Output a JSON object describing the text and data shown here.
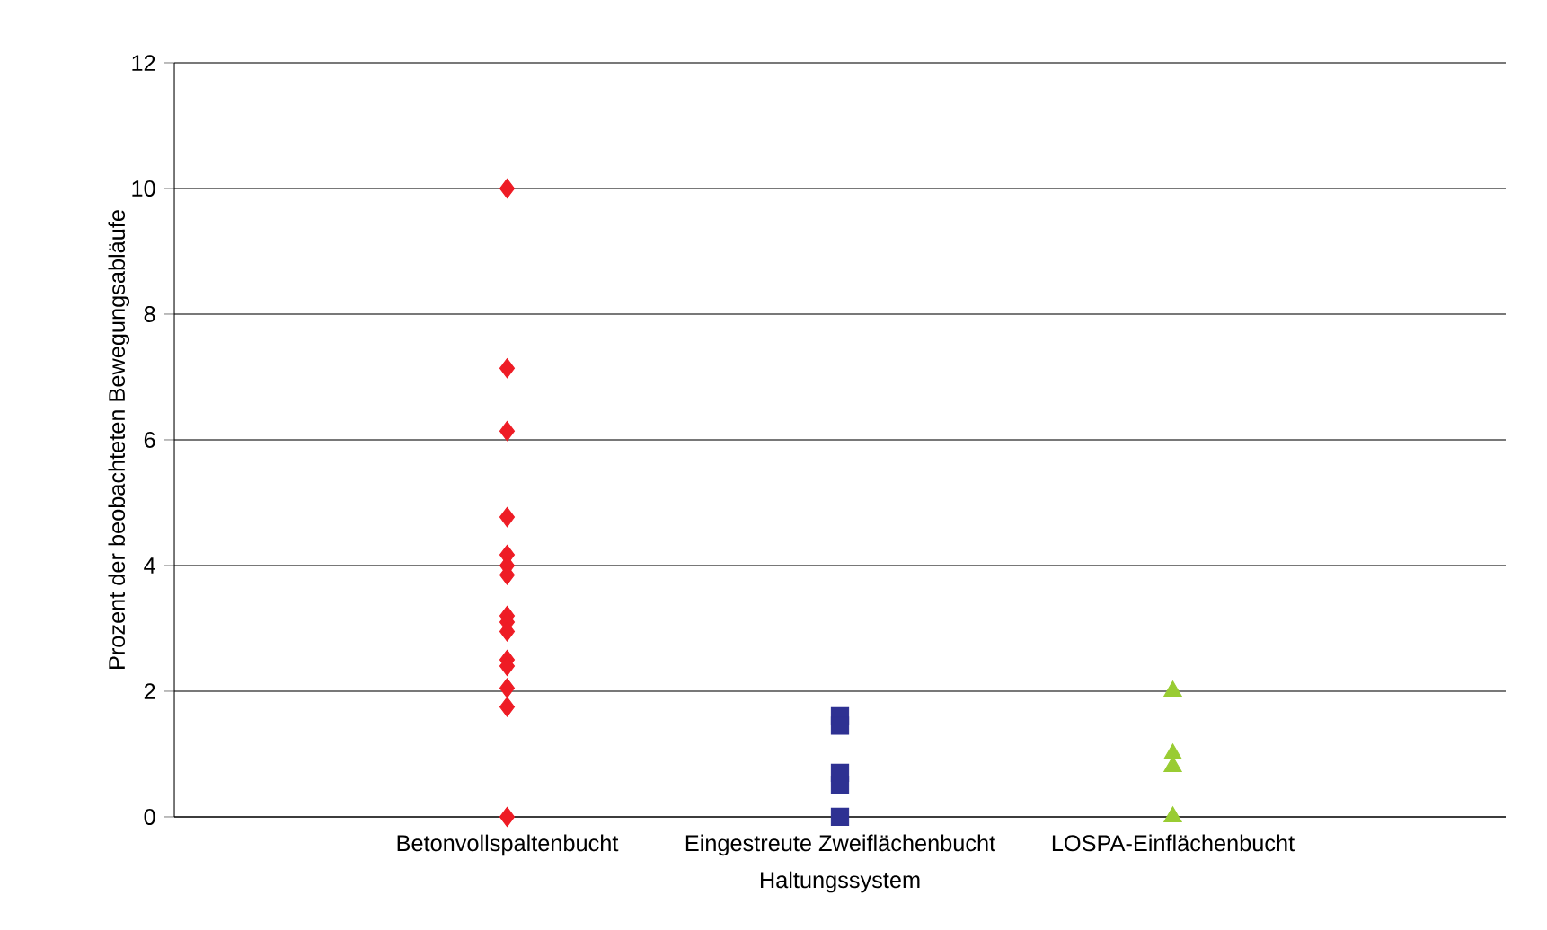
{
  "chart_data": {
    "type": "scatter",
    "xlabel": "Haltungssystem",
    "ylabel": "Prozent der beobachteten Bewegungsabläufe",
    "categories": [
      "Betonvollspaltenbucht",
      "Eingestreute Zweiflächenbucht",
      "LOSPA-Einflächenbucht"
    ],
    "ylim": [
      0,
      12
    ],
    "yticks": [
      0,
      2,
      4,
      6,
      8,
      10,
      12
    ],
    "grid": "y",
    "series": [
      {
        "color": "#ee1c25",
        "marker": "diamond",
        "x": [
          "Betonvollspaltenbucht",
          "Betonvollspaltenbucht",
          "Betonvollspaltenbucht",
          "Betonvollspaltenbucht",
          "Betonvollspaltenbucht",
          "Betonvollspaltenbucht",
          "Betonvollspaltenbucht",
          "Betonvollspaltenbucht",
          "Betonvollspaltenbucht",
          "Betonvollspaltenbucht",
          "Betonvollspaltenbucht",
          "Betonvollspaltenbucht",
          "Betonvollspaltenbucht",
          "Betonvollspaltenbucht",
          "Betonvollspaltenbucht"
        ],
        "values": [
          10,
          7.14,
          6.14,
          4.77,
          4.17,
          4.0,
          3.85,
          3.2,
          3.1,
          2.95,
          2.5,
          2.4,
          2.05,
          1.75,
          0
        ]
      },
      {
        "color": "#2e3192",
        "marker": "square",
        "x": [
          "Eingestreute Zweiflächenbucht",
          "Eingestreute Zweiflächenbucht",
          "Eingestreute Zweiflächenbucht",
          "Eingestreute Zweiflächenbucht",
          "Eingestreute Zweiflächenbucht"
        ],
        "values": [
          1.6,
          1.45,
          0.7,
          0.5,
          0
        ]
      },
      {
        "color": "#99cc33",
        "marker": "triangle",
        "x": [
          "LOSPA-Einflächenbucht",
          "LOSPA-Einflächenbucht",
          "LOSPA-Einflächenbucht",
          "LOSPA-Einflächenbucht"
        ],
        "values": [
          2.0,
          1.0,
          0.8,
          0
        ]
      }
    ]
  }
}
